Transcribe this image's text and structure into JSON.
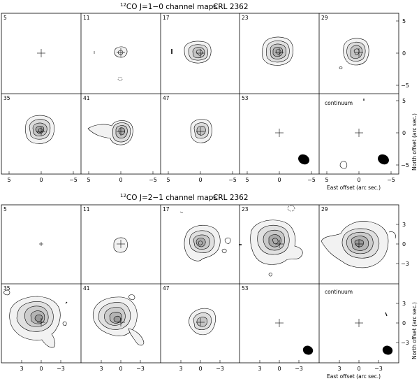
{
  "figure_a": {
    "title_sup": "12",
    "title_main": "CO J=1−0 channel maps",
    "title_source": "CRL 2362",
    "panel_labels": [
      "5",
      "11",
      "17",
      "23",
      "29",
      "35",
      "41",
      "47",
      "53",
      "continuum"
    ],
    "x_ticks": [
      "5",
      "0",
      "−5"
    ],
    "y_ticks": [
      "5",
      "0",
      "−5"
    ],
    "x_label": "East offset (arc sec.)",
    "y_label": "North offset (arc sec.)"
  },
  "figure_b": {
    "title_sup": "12",
    "title_main": "CO J=2−1 channel maps",
    "title_source": "CRL 2362",
    "panel_labels": [
      "5",
      "11",
      "17",
      "23",
      "29",
      "35",
      "41",
      "47",
      "53",
      "continuum"
    ],
    "x_ticks": [
      "3",
      "0",
      "−3"
    ],
    "y_ticks": [
      "3",
      "0",
      "−3"
    ],
    "x_label": "East offset (arc sec.)",
    "y_label": "North offset (arc sec.)"
  }
}
